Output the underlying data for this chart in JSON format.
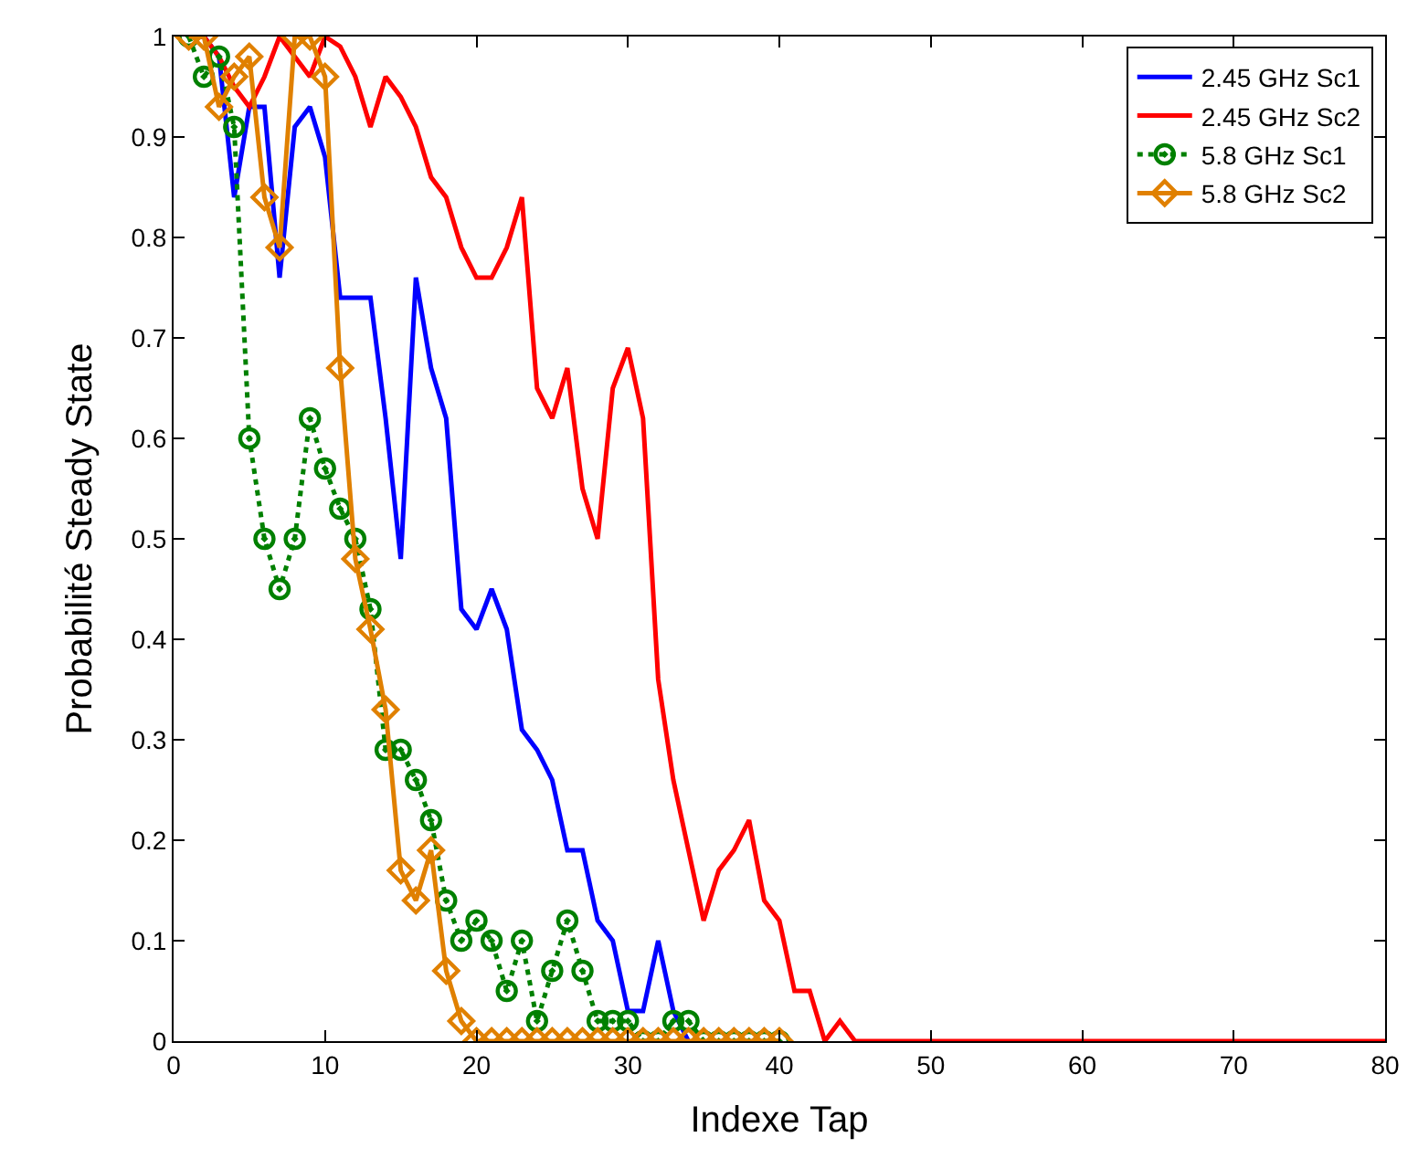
{
  "chart_data": {
    "type": "line",
    "xlabel": "Indexe Tap",
    "ylabel": "Probabilité Steady State",
    "xlim": [
      0,
      80
    ],
    "xticks": [
      0,
      10,
      20,
      30,
      40,
      50,
      60,
      70,
      80
    ],
    "ylim": [
      0,
      1
    ],
    "yticks": [
      0,
      0.1,
      0.2,
      0.3,
      0.4,
      0.5,
      0.6,
      0.7,
      0.8,
      0.9,
      1
    ],
    "legend": "top right",
    "series": [
      {
        "name": "2.45 GHz Sc1",
        "color": "#0000ff",
        "marker": "none",
        "line_style": "solid",
        "x": [
          1,
          2,
          3,
          4,
          5,
          6,
          7,
          8,
          9,
          10,
          11,
          12,
          13,
          14,
          15,
          16,
          17,
          18,
          19,
          20,
          21,
          22,
          23,
          24,
          25,
          26,
          27,
          28,
          29,
          30,
          31,
          32,
          33,
          34
        ],
        "values": [
          1.0,
          1.0,
          0.98,
          0.84,
          0.93,
          0.93,
          0.76,
          0.91,
          0.93,
          0.88,
          0.74,
          0.74,
          0.74,
          0.62,
          0.48,
          0.76,
          0.67,
          0.62,
          0.43,
          0.41,
          0.45,
          0.41,
          0.31,
          0.29,
          0.26,
          0.19,
          0.19,
          0.12,
          0.1,
          0.03,
          0.03,
          0.1,
          0.03,
          0.0
        ]
      },
      {
        "name": "2.45 GHz Sc2",
        "color": "#ff0000",
        "marker": "none",
        "line_style": "solid",
        "x": [
          1,
          2,
          3,
          4,
          5,
          6,
          7,
          8,
          9,
          10,
          11,
          12,
          13,
          14,
          15,
          16,
          17,
          18,
          19,
          20,
          21,
          22,
          23,
          24,
          25,
          26,
          27,
          28,
          29,
          30,
          31,
          32,
          33,
          34,
          35,
          36,
          37,
          38,
          39,
          40,
          41,
          42,
          43,
          44,
          45,
          80
        ],
        "values": [
          1.0,
          1.0,
          0.98,
          0.95,
          0.93,
          0.96,
          1.0,
          0.98,
          0.96,
          1.0,
          0.99,
          0.96,
          0.91,
          0.96,
          0.94,
          0.91,
          0.86,
          0.84,
          0.79,
          0.76,
          0.76,
          0.79,
          0.84,
          0.65,
          0.62,
          0.67,
          0.55,
          0.5,
          0.65,
          0.69,
          0.62,
          0.36,
          0.26,
          0.19,
          0.12,
          0.17,
          0.19,
          0.22,
          0.14,
          0.12,
          0.05,
          0.05,
          0.0,
          0.02,
          0.0,
          0.0
        ]
      },
      {
        "name": "5.8 GHz Sc1",
        "color": "#008000",
        "marker": "circle",
        "line_style": "dotted",
        "x": [
          1,
          2,
          3,
          4,
          5,
          6,
          7,
          8,
          9,
          10,
          11,
          12,
          13,
          14,
          15,
          16,
          17,
          18,
          19,
          20,
          21,
          22,
          23,
          24,
          25,
          26,
          27,
          28,
          29,
          30,
          31,
          32,
          33,
          34,
          35,
          36,
          37,
          38,
          39,
          40
        ],
        "values": [
          1.0,
          0.96,
          0.98,
          0.91,
          0.6,
          0.5,
          0.45,
          0.5,
          0.62,
          0.57,
          0.53,
          0.5,
          0.43,
          0.29,
          0.29,
          0.26,
          0.22,
          0.14,
          0.1,
          0.12,
          0.1,
          0.05,
          0.1,
          0.02,
          0.07,
          0.12,
          0.07,
          0.02,
          0.02,
          0.02,
          0.0,
          0.0,
          0.02,
          0.02,
          0.0,
          0.0,
          0.0,
          0.0,
          0.0,
          0.0
        ]
      },
      {
        "name": "5.8 GHz Sc2",
        "color": "#e08000",
        "marker": "diamond",
        "line_style": "solid",
        "x": [
          1,
          2,
          3,
          4,
          5,
          6,
          7,
          8,
          9,
          10,
          11,
          12,
          13,
          14,
          15,
          16,
          17,
          18,
          19,
          20,
          21,
          22,
          23,
          24,
          25,
          26,
          27,
          28,
          29,
          30,
          31,
          32,
          33,
          34,
          35,
          36,
          37,
          38,
          39,
          40
        ],
        "values": [
          1.0,
          1.0,
          0.93,
          0.96,
          0.98,
          0.84,
          0.79,
          1.0,
          1.0,
          0.96,
          0.67,
          0.48,
          0.41,
          0.33,
          0.17,
          0.14,
          0.19,
          0.07,
          0.02,
          0.0,
          0.0,
          0.0,
          0.0,
          0.0,
          0.0,
          0.0,
          0.0,
          0.0,
          0.0,
          0.0,
          0.0,
          0.0,
          0.0,
          0.0,
          0.0,
          0.0,
          0.0,
          0.0,
          0.0,
          0.0
        ]
      }
    ]
  }
}
